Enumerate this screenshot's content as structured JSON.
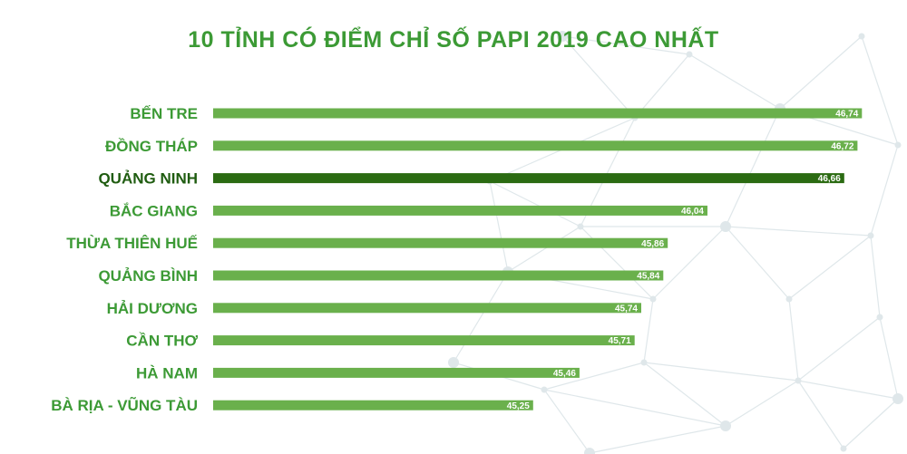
{
  "title": "10 TỈNH CÓ ĐIỂM CHỈ SỐ PAPI 2019 CAO NHẤT",
  "colors": {
    "title": "#3c9a35",
    "bar": "#6ab04c",
    "bar_highlight": "#2b6b12",
    "label": "#3c9a35",
    "label_highlight": "#1f5c10",
    "network": "#dfe7ea"
  },
  "chart_data": {
    "type": "bar",
    "orientation": "horizontal",
    "categories": [
      "BẾN TRE",
      "ĐỒNG THÁP",
      "QUẢNG NINH",
      "BẮC GIANG",
      "THỪA THIÊN HUẾ",
      "QUẢNG BÌNH",
      "HẢI DƯƠNG",
      "CẦN THƠ",
      "HÀ NAM",
      "BÀ RỊA - VŨNG TÀU"
    ],
    "values": [
      46.74,
      46.72,
      46.66,
      46.04,
      45.86,
      45.84,
      45.74,
      45.71,
      45.46,
      45.25
    ],
    "value_labels": [
      "46,74",
      "46,72",
      "46,66",
      "46,04",
      "45,86",
      "45,84",
      "45,74",
      "45,71",
      "45,46",
      "45,25"
    ],
    "highlight": "QUẢNG NINH",
    "xlim": [
      43.8,
      46.78
    ],
    "grid": false,
    "legend": "none",
    "title": "10 TỈNH CÓ ĐIỂM CHỈ SỐ PAPI 2019 CAO NHẤT"
  }
}
